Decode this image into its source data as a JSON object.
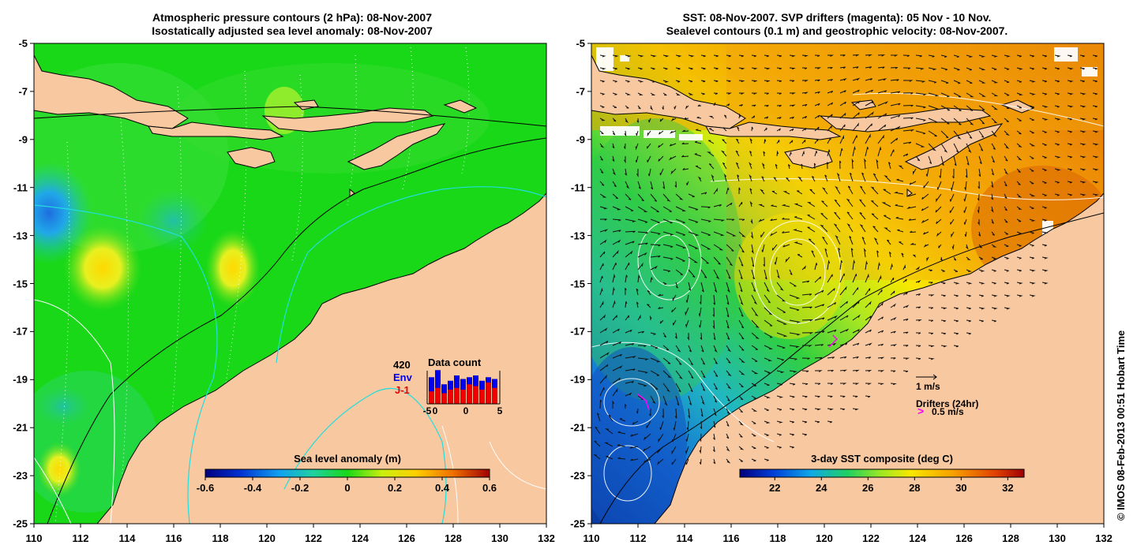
{
  "left_map": {
    "title_line1": "Atmospheric pressure contours (2 hPa): 08-Nov-2007",
    "title_line2": "Isostatically adjusted sea level anomaly: 08-Nov-2007",
    "lon_ticks": [
      "110",
      "112",
      "114",
      "116",
      "118",
      "120",
      "122",
      "124",
      "126",
      "128",
      "130",
      "132"
    ],
    "lat_ticks": [
      "-5",
      "-7",
      "-9",
      "-11",
      "-13",
      "-15",
      "-17",
      "-19",
      "-21",
      "-23",
      "-25"
    ],
    "colorbar": {
      "title": "Sea level anomaly (m)",
      "ticks": [
        "-0.6",
        "-0.4",
        "-0.2",
        "0",
        "0.2",
        "0.4",
        "0.6"
      ],
      "range": [
        -0.6,
        0.6
      ]
    },
    "histogram": {
      "count_label": "420",
      "env_label": "Env",
      "j1_label": "J-1",
      "title": "Data count",
      "x_ticks": [
        "-5",
        "0",
        "0",
        "5"
      ],
      "env_color": "#0000ee",
      "j1_color": "#ee0000",
      "bins": [
        {
          "env": 0.75,
          "j1": 0.35
        },
        {
          "env": 0.95,
          "j1": 0.45
        },
        {
          "env": 0.55,
          "j1": 0.3
        },
        {
          "env": 0.65,
          "j1": 0.4
        },
        {
          "env": 0.8,
          "j1": 0.45
        },
        {
          "env": 0.7,
          "j1": 0.4
        },
        {
          "env": 0.75,
          "j1": 0.55
        },
        {
          "env": 0.8,
          "j1": 0.5
        },
        {
          "env": 0.65,
          "j1": 0.4
        },
        {
          "env": 0.75,
          "j1": 0.6
        },
        {
          "env": 0.7,
          "j1": 0.45
        }
      ]
    }
  },
  "right_map": {
    "title_line1": "SST: 08-Nov-2007. SVP drifters (magenta): 05 Nov - 10 Nov.",
    "title_line2": "Sealevel contours (0.1 m) and geostrophic velocity: 08-Nov-2007.",
    "lon_ticks": [
      "110",
      "112",
      "114",
      "116",
      "118",
      "120",
      "122",
      "124",
      "126",
      "128",
      "130",
      "132"
    ],
    "lat_ticks": [
      "-5",
      "-7",
      "-9",
      "-11",
      "-13",
      "-15",
      "-17",
      "-19",
      "-21",
      "-23",
      "-25"
    ],
    "colorbar": {
      "title": "3-day SST composite (deg C)",
      "ticks": [
        "22",
        "24",
        "26",
        "28",
        "30",
        "32"
      ],
      "range": [
        20.5,
        32.7
      ]
    },
    "velocity_scale_label": "1 m/s",
    "drifters_label": "Drifters (24hr)",
    "drifter_symbol": ">",
    "drifter_scale_label": "0.5 m/s"
  },
  "copyright": "© IMOS 08-Feb-2013 00:51 Hobart Time",
  "colors": {
    "land": "#f8c8a0",
    "ocean_green": "#18d818",
    "coast": "#000000",
    "contour_cyan": "#22dddd"
  }
}
